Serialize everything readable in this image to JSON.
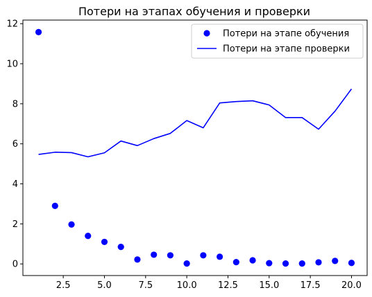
{
  "chart_data": {
    "type": "line",
    "title": "Потери на этапах обучения и проверки",
    "xlabel": "",
    "ylabel": "",
    "xlim": [
      0.05,
      20.95
    ],
    "ylim": [
      -0.58,
      12.18
    ],
    "xticks": [
      2.5,
      5.0,
      7.5,
      10.0,
      12.5,
      15.0,
      17.5,
      20.0
    ],
    "xtick_labels": [
      "2.5",
      "5.0",
      "7.5",
      "10.0",
      "12.5",
      "15.0",
      "17.5",
      "20.0"
    ],
    "yticks": [
      0,
      2,
      4,
      6,
      8,
      10,
      12
    ],
    "ytick_labels": [
      "0",
      "2",
      "4",
      "6",
      "8",
      "10",
      "12"
    ],
    "grid": false,
    "legend_position": "top-right",
    "x": [
      1,
      2,
      3,
      4,
      5,
      6,
      7,
      8,
      9,
      10,
      11,
      12,
      13,
      14,
      15,
      16,
      17,
      18,
      19,
      20
    ],
    "series": [
      {
        "name": "Потери на этапе обучения",
        "style": "markers",
        "color": "#0000ff",
        "values": [
          11.58,
          2.9,
          1.97,
          1.4,
          1.1,
          0.85,
          0.22,
          0.46,
          0.43,
          0.02,
          0.43,
          0.36,
          0.09,
          0.18,
          0.04,
          0.02,
          0.02,
          0.08,
          0.15,
          0.05
        ]
      },
      {
        "name": "Потери на этапе проверки",
        "style": "line",
        "color": "#0000ff",
        "values": [
          5.47,
          5.58,
          5.56,
          5.35,
          5.55,
          6.14,
          5.91,
          6.26,
          6.52,
          7.16,
          6.8,
          8.04,
          8.11,
          8.15,
          7.94,
          7.31,
          7.31,
          6.73,
          7.63,
          8.74
        ]
      }
    ]
  }
}
